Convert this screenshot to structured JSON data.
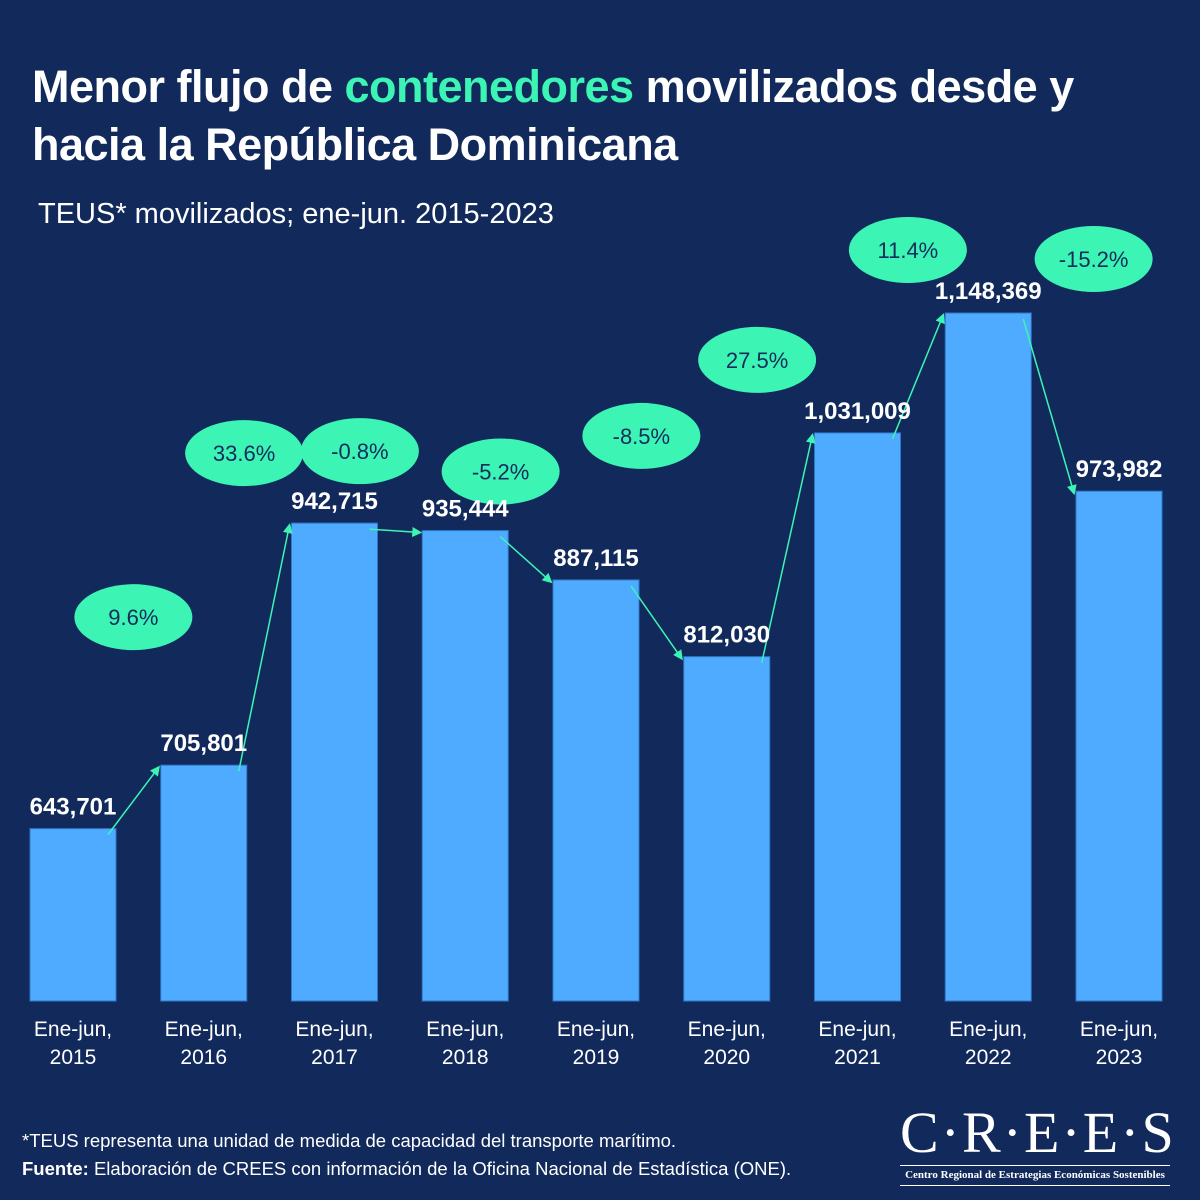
{
  "header": {
    "title_part1": "Menor flujo de ",
    "title_highlight": "contenedores",
    "title_part2": " movilizados desde y hacia la República Dominicana",
    "subtitle": "TEUS* movilizados; ene-jun. 2015-2023"
  },
  "colors": {
    "background": "#122a5b",
    "bar": "#4eabff",
    "accent": "#3cf5b5",
    "ellipse_text": "#142c5c",
    "text": "#ffffff"
  },
  "chart_data": {
    "type": "bar",
    "title": "Menor flujo de contenedores movilizados desde y hacia la República Dominicana",
    "subtitle": "TEUS* movilizados; ene-jun. 2015-2023",
    "xlabel": "",
    "ylabel": "TEUS",
    "categories": [
      [
        "Ene-jun,",
        "2015"
      ],
      [
        "Ene-jun,",
        "2016"
      ],
      [
        "Ene-jun,",
        "2017"
      ],
      [
        "Ene-jun,",
        "2018"
      ],
      [
        "Ene-jun,",
        "2019"
      ],
      [
        "Ene-jun,",
        "2020"
      ],
      [
        "Ene-jun,",
        "2021"
      ],
      [
        "Ene-jun,",
        "2022"
      ],
      [
        "Ene-jun,",
        "2023"
      ]
    ],
    "values": [
      643701,
      705801,
      942715,
      935444,
      887115,
      812030,
      1031009,
      1148369,
      973982
    ],
    "value_labels": [
      "643,701",
      "705,801",
      "942,715",
      "935,444",
      "887,115",
      "812,030",
      "1,031,009",
      "1,148,369",
      "973,982"
    ],
    "changes": [
      "9.6%",
      "33.6%",
      "-0.8%",
      "-5.2%",
      "-8.5%",
      "27.5%",
      "11.4%",
      "-15.2%"
    ],
    "ylim": [
      475000,
      1148369
    ],
    "grid": false,
    "legend": "none"
  },
  "footer": {
    "note": "*TEUS representa una unidad de medida de capacidad del transporte marítimo.",
    "source_label": "Fuente:",
    "source_text": " Elaboración de CREES con información de la Oficina Nacional de Estadística (ONE)."
  },
  "logo": {
    "name": "C·R·E·E·S",
    "subtitle": "Centro Regional de Estrategias Económicas Sostenibles"
  }
}
